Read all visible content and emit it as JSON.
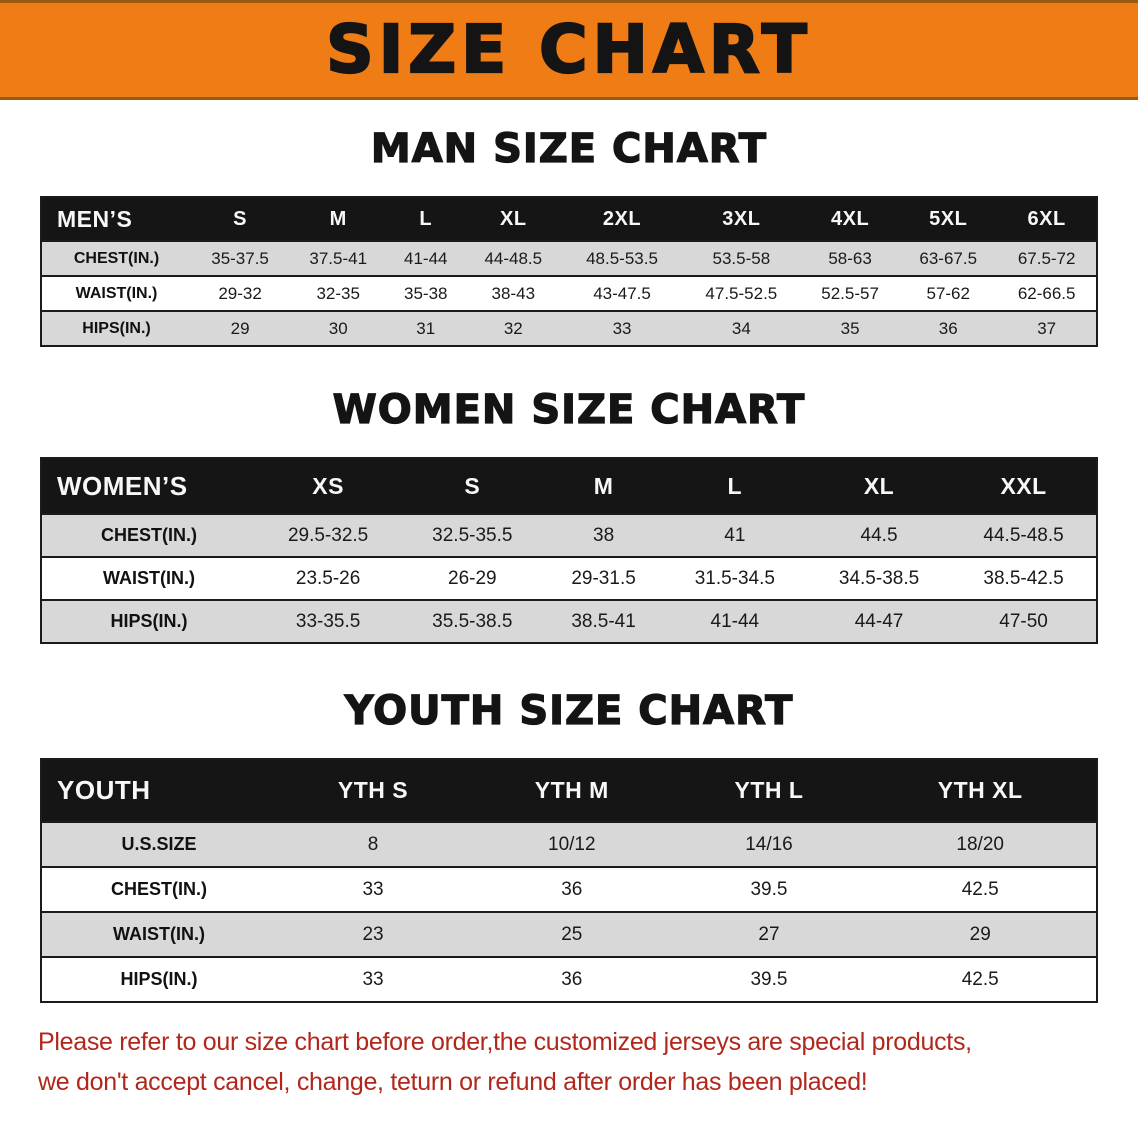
{
  "banner": {
    "title": "SIZE CHART"
  },
  "sections": [
    {
      "heading": "MAN SIZE CHART",
      "table": {
        "header": [
          "MEN’S",
          "S",
          "M",
          "L",
          "XL",
          "2XL",
          "3XL",
          "4XL",
          "5XL",
          "6XL"
        ],
        "rows": [
          {
            "label": "CHEST(IN.)",
            "values": [
              "35-37.5",
              "37.5-41",
              "41-44",
              "44-48.5",
              "48.5-53.5",
              "53.5-58",
              "58-63",
              "63-67.5",
              "67.5-72"
            ]
          },
          {
            "label": "WAIST(IN.)",
            "values": [
              "29-32",
              "32-35",
              "35-38",
              "38-43",
              "43-47.5",
              "47.5-52.5",
              "52.5-57",
              "57-62",
              "62-66.5"
            ]
          },
          {
            "label": "HIPS(IN.)",
            "values": [
              "29",
              "30",
              "31",
              "32",
              "33",
              "34",
              "35",
              "36",
              "37"
            ]
          }
        ]
      }
    },
    {
      "heading": "WOMEN SIZE CHART",
      "table": {
        "header": [
          "WOMEN’S",
          "XS",
          "S",
          "M",
          "L",
          "XL",
          "XXL"
        ],
        "rows": [
          {
            "label": "CHEST(IN.)",
            "values": [
              "29.5-32.5",
              "32.5-35.5",
              "38",
              "41",
              "44.5",
              "44.5-48.5"
            ]
          },
          {
            "label": "WAIST(IN.)",
            "values": [
              "23.5-26",
              "26-29",
              "29-31.5",
              "31.5-34.5",
              "34.5-38.5",
              "38.5-42.5"
            ]
          },
          {
            "label": "HIPS(IN.)",
            "values": [
              "33-35.5",
              "35.5-38.5",
              "38.5-41",
              "41-44",
              "44-47",
              "47-50"
            ]
          }
        ]
      }
    },
    {
      "heading": "YOUTH SIZE CHART",
      "table": {
        "header": [
          "YOUTH",
          "YTH S",
          "YTH M",
          "YTH L",
          "YTH XL"
        ],
        "rows": [
          {
            "label": "U.S.SIZE",
            "values": [
              "8",
              "10/12",
              "14/16",
              "18/20"
            ]
          },
          {
            "label": "CHEST(IN.)",
            "values": [
              "33",
              "36",
              "39.5",
              "42.5"
            ]
          },
          {
            "label": "WAIST(IN.)",
            "values": [
              "23",
              "25",
              "27",
              "29"
            ]
          },
          {
            "label": "HIPS(IN.)",
            "values": [
              "33",
              "36",
              "39.5",
              "42.5"
            ]
          }
        ]
      }
    }
  ],
  "footer": {
    "lines": [
      "Please refer to our size chart before order,the customized jerseys are special products,",
      "we don't accept cancel, change, teturn or refund after order has been placed!"
    ]
  },
  "colors": {
    "banner_bg": "#F07C15",
    "table_header_bg": "#151515",
    "row_shade": "#D8D8D8",
    "table_border": "#1B1B1B",
    "disclaimer_text": "#B2271B",
    "title_text": "#141414"
  }
}
